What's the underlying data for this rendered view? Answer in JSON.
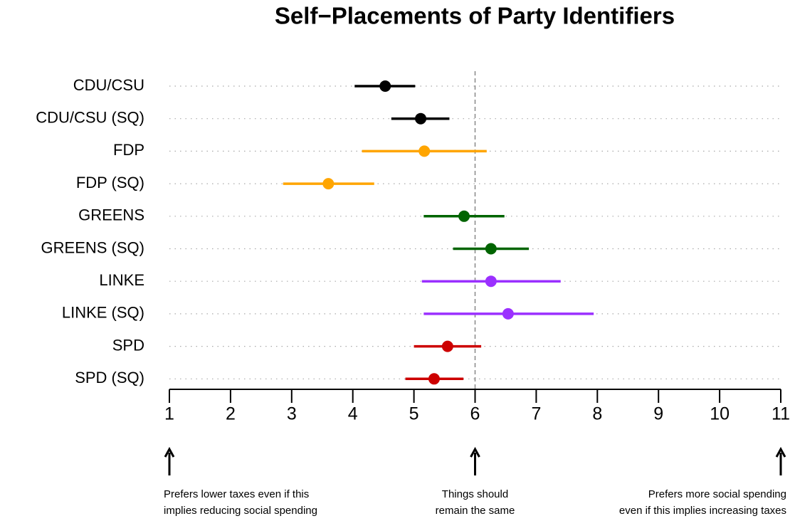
{
  "chart_data": {
    "type": "dotplot",
    "title": "Self−Placements of Party Identifiers",
    "categories": [
      "CDU/CSU",
      "CDU/CSU (SQ)",
      "FDP",
      "FDP (SQ)",
      "GREENS",
      "GREENS (SQ)",
      "LINKE",
      "LINKE (SQ)",
      "SPD",
      "SPD (SQ)"
    ],
    "values": [
      4.53,
      5.11,
      5.17,
      3.6,
      5.82,
      6.26,
      6.26,
      6.54,
      5.55,
      5.33
    ],
    "lower": [
      4.03,
      4.63,
      4.15,
      2.86,
      5.16,
      5.64,
      5.13,
      5.16,
      5.0,
      4.86
    ],
    "upper": [
      5.02,
      5.58,
      6.19,
      4.35,
      6.48,
      6.88,
      7.4,
      7.94,
      6.1,
      5.81
    ],
    "colors": [
      "#000000",
      "#000000",
      "#FFA500",
      "#FFA500",
      "#006400",
      "#006400",
      "#9B30FF",
      "#9B30FF",
      "#CD0000",
      "#CD0000"
    ],
    "xlim": [
      1,
      11
    ],
    "xticks": [
      1,
      2,
      3,
      4,
      5,
      6,
      7,
      8,
      9,
      10,
      11
    ],
    "grid": true,
    "reference_line": 6,
    "annotations": [
      {
        "x": 1,
        "text": [
          "Prefers lower taxes even if this",
          "implies reducing social spending"
        ]
      },
      {
        "x": 6,
        "text": [
          "Things should",
          "remain the same"
        ]
      },
      {
        "x": 11,
        "text": [
          "Prefers more social spending",
          "even if this implies increasing taxes"
        ]
      }
    ]
  }
}
